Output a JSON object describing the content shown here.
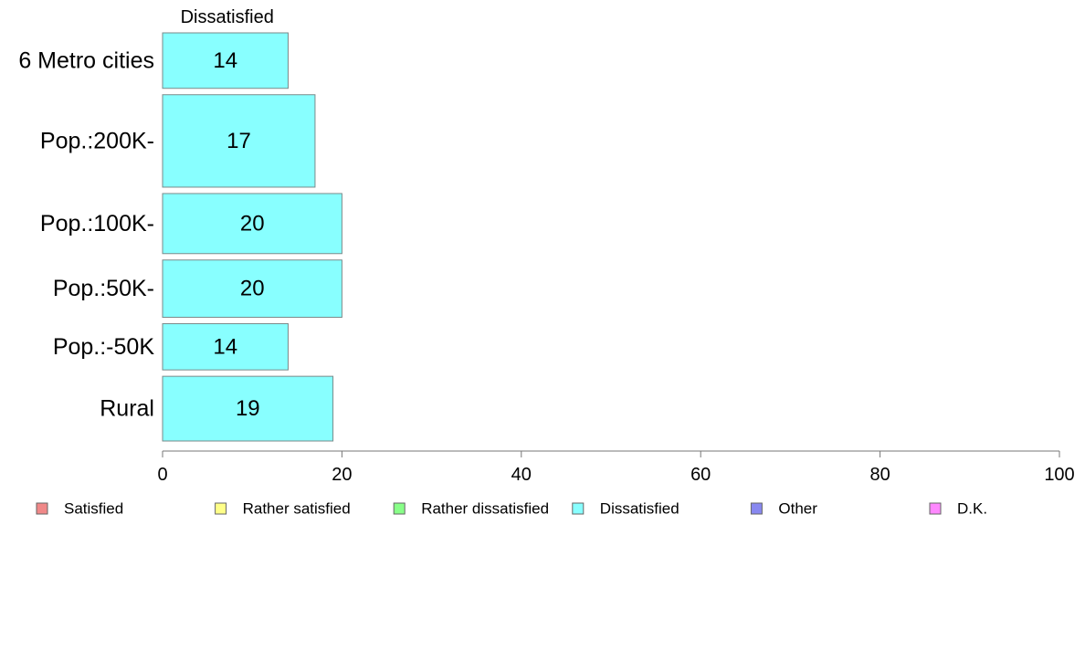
{
  "chart_data": {
    "type": "bar",
    "orientation": "horizontal",
    "stacked": true,
    "title": "",
    "xlabel": "",
    "ylabel": "",
    "xlim": [
      0,
      100
    ],
    "x_ticks": [
      0,
      20,
      40,
      60,
      80,
      100
    ],
    "grid": false,
    "shown_series_label": "Dissatisfied",
    "categories": [
      "6 Metro cities",
      "Pop.:200K-",
      "Pop.:100K-",
      "Pop.:50K-",
      "Pop.:-50K",
      "Rural"
    ],
    "bar_weights": [
      0.6,
      1.0,
      0.65,
      0.62,
      0.5,
      0.7
    ],
    "series": [
      {
        "name": "Dissatisfied",
        "color": "#88ffff",
        "values": [
          14,
          17,
          20,
          20,
          14,
          19
        ]
      }
    ],
    "legend": {
      "placement": "bottom",
      "items": [
        {
          "label": "Satisfied",
          "color": "#f08888"
        },
        {
          "label": "Rather satisfied",
          "color": "#ffff88"
        },
        {
          "label": "Rather dissatisfied",
          "color": "#88ff88"
        },
        {
          "label": "Dissatisfied",
          "color": "#88ffff"
        },
        {
          "label": "Other",
          "color": "#8888f0"
        },
        {
          "label": "D.K.",
          "color": "#ff88ff"
        }
      ]
    }
  }
}
